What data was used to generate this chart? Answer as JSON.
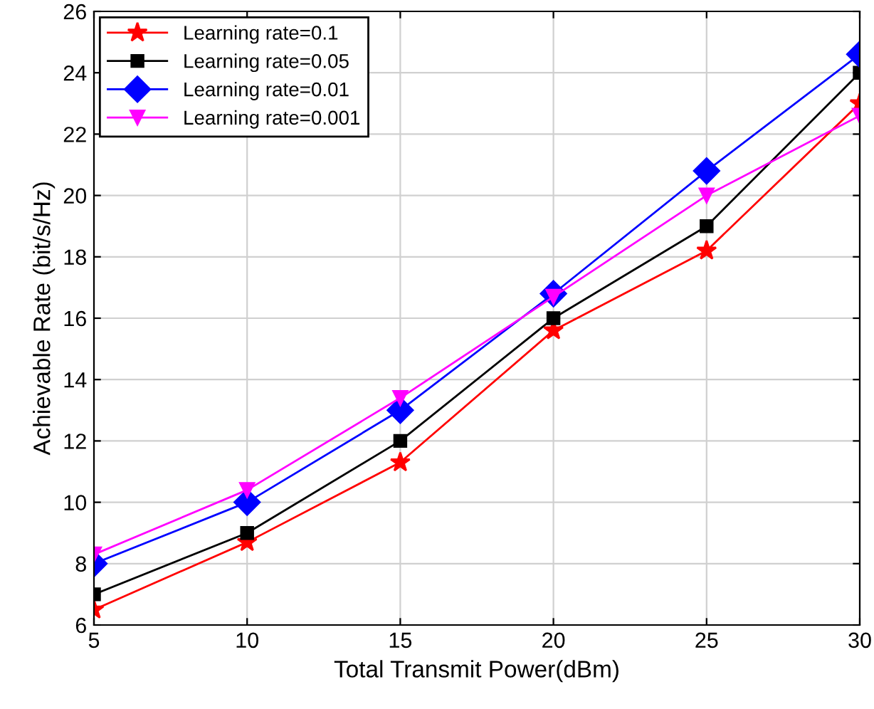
{
  "chart_data": {
    "type": "line",
    "xlabel": "Total Transmit Power(dBm)",
    "ylabel": "Achievable Rate (bit/s/Hz)",
    "x": [
      5,
      10,
      15,
      20,
      25,
      30
    ],
    "series": [
      {
        "name": "Learning rate=0.1",
        "color": "#ff0000",
        "marker": "star",
        "values": [
          6.5,
          8.7,
          11.3,
          15.6,
          18.2,
          23.0
        ]
      },
      {
        "name": "Learning rate=0.05",
        "color": "#000000",
        "marker": "square",
        "values": [
          7.0,
          9.0,
          12.0,
          16.0,
          19.0,
          24.0
        ]
      },
      {
        "name": "Learning rate=0.01",
        "color": "#0000ff",
        "marker": "diamond",
        "values": [
          8.0,
          10.0,
          13.0,
          16.8,
          20.8,
          24.6
        ]
      },
      {
        "name": "Learning rate=0.001",
        "color": "#ff00ff",
        "marker": "triangle",
        "values": [
          8.3,
          10.4,
          13.4,
          16.7,
          20.0,
          22.6
        ]
      }
    ],
    "xlim": [
      5,
      30
    ],
    "xticks": [
      5,
      10,
      15,
      20,
      25,
      30
    ],
    "ylim": [
      6,
      26
    ],
    "yticks": [
      6,
      8,
      10,
      12,
      14,
      16,
      18,
      20,
      22,
      24,
      26
    ],
    "grid": true,
    "legend": "top left",
    "line_style": "solid"
  }
}
